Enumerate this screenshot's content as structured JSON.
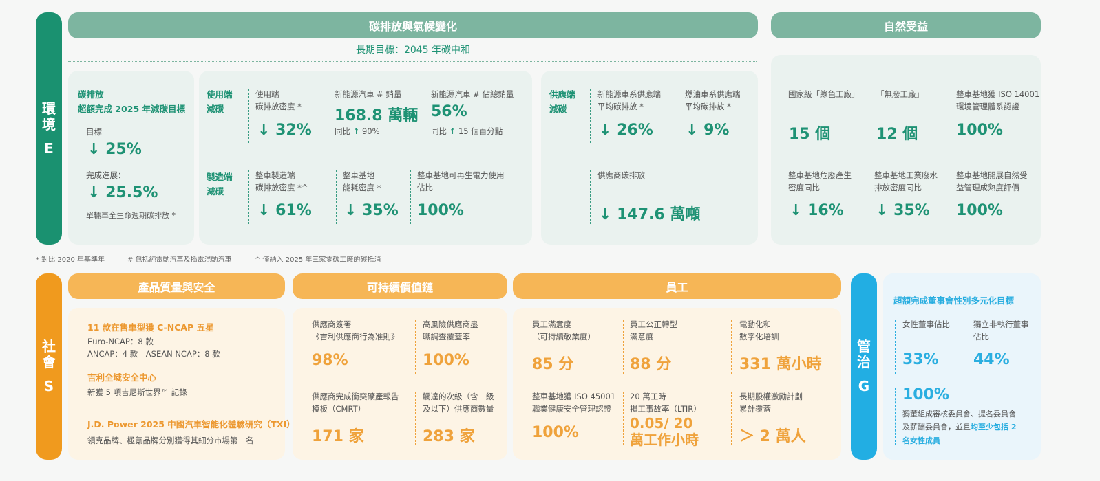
{
  "env": {
    "sidebar": {
      "chars": [
        "環",
        "境"
      ],
      "letter": "E"
    },
    "header_carbon": "碳排放與氣候變化",
    "header_nature": "自然受益",
    "long_term_goal": "長期目標：2045 年碳中和",
    "carbon_box": {
      "title1": "碳排放",
      "title2": "超額完成 2025 年減碳目標",
      "target_label": "目標",
      "target_value": "↓ 25%",
      "progress_label": "完成進展：",
      "progress_value": "↓ 25.5%",
      "progress_note": "單輛車全生命週期碳排放 *"
    },
    "use_side": {
      "title": [
        "使用端",
        "減碳"
      ],
      "m1_label": [
        "使用端",
        "碳排放密度 *"
      ],
      "m1_value": "↓ 32%",
      "m2_label": "新能源汽車 # 銷量",
      "m2_value": "168.8 萬輛",
      "m2_sub_prefix": "同比",
      "m2_sub_arrow": "↑",
      "m2_sub_value": "90%",
      "m3_label": "新能源汽車 # 佔總銷量",
      "m3_value": "56%",
      "m3_sub_prefix": "同比",
      "m3_sub_arrow": "↑",
      "m3_sub_value": "15 個百分點"
    },
    "mfg_side": {
      "title": [
        "製造端",
        "減碳"
      ],
      "m1_label": [
        "整車製造端",
        "碳排放密度 *^"
      ],
      "m1_value": "↓ 61%",
      "m2_label": [
        "整車基地",
        "能耗密度 *"
      ],
      "m2_value": "↓ 35%",
      "m3_label": [
        "整車基地可再生電力使用",
        "佔比"
      ],
      "m3_value": "100%"
    },
    "supply_side": {
      "title": [
        "供應端",
        "減碳"
      ],
      "m1_label": [
        "新能源車系供應端",
        "平均碳排放 *"
      ],
      "m1_value": "↓ 26%",
      "m2_label": [
        "燃油車系供應端",
        "平均碳排放 *"
      ],
      "m2_value": "↓ 9%",
      "m3_label": "供應商碳排放",
      "m3_value": "↓ 147.6 萬噸"
    },
    "nature": {
      "m1_label": "國家級「綠色工廠」",
      "m1_value": "15 個",
      "m2_label": "「無廢工廠」",
      "m2_value": "12 個",
      "m3_label": [
        "整車基地獲 ISO 14001",
        "環境管理體系認證"
      ],
      "m3_value": "100%",
      "m4_label": [
        "整車基地危廢產生",
        "密度同比"
      ],
      "m4_value": "↓ 16%",
      "m5_label": [
        "整車基地工業廢水",
        "排放密度同比"
      ],
      "m5_value": "↓ 35%",
      "m6_label": [
        "整車基地開展自然受",
        "益管理成熟度評價"
      ],
      "m6_value": "100%"
    },
    "footnotes": [
      "* 對比 2020 年基準年",
      "# 包括純電動汽車及插電混動汽車",
      "^ 僅納入 2025 年三家零碳工廠的碳抵消"
    ]
  },
  "social": {
    "sidebar": {
      "chars": [
        "社",
        "會"
      ],
      "letter": "S"
    },
    "header_quality": "產品質量與安全",
    "header_supply": "可持續價值鏈",
    "header_staff": "員工",
    "quality": {
      "t1": "11 款在售車型獲 C-NCAP 五星",
      "t1_l1": "Euro-NCAP：8 款",
      "t1_l2": "ANCAP：4 款　ASEAN NCAP：8 款",
      "t2": "吉利全域安全中心",
      "t2_l1": "新獲 5 項吉尼斯世界™ 記錄",
      "t3": "J.D. Power 2025 中國汽車智能化體驗研究（TXI）",
      "t3_l1": "領克品牌、極氪品牌分別獲得其細分市場第一名"
    },
    "supply": {
      "m1_label": [
        "供應商簽署",
        "《吉利供應商行為准則》"
      ],
      "m1_value": "98%",
      "m2_label": [
        "高風險供應商盡",
        "職調查覆蓋率"
      ],
      "m2_value": "100%",
      "m3_label": [
        "供應商完成衝突礦產報告",
        "模板（CMRT）"
      ],
      "m3_value": "171 家",
      "m4_label": [
        "觸達的次級（含二級",
        "及以下）供應商數量"
      ],
      "m4_value": "283 家"
    },
    "staff": {
      "m1_label": [
        "員工滿意度",
        "（可持續敬業度）"
      ],
      "m1_value": "85 分",
      "m2_label": [
        "員工公正轉型",
        "滿意度"
      ],
      "m2_value": "88 分",
      "m3_label": [
        "電動化和",
        "數字化培訓"
      ],
      "m3_value": "331 萬小時",
      "m4_label": [
        "整車基地獲 ISO 45001",
        "職業健康安全管理認證"
      ],
      "m4_value": "100%",
      "m5_label": [
        "20 萬工時",
        "損工事故率（LTIR）"
      ],
      "m5_value": [
        "0.05/ 20",
        "萬工作小時"
      ],
      "m6_label": [
        "長期股權激勵計劃",
        "累計覆蓋"
      ],
      "m6_value": "＞ 2 萬人"
    }
  },
  "gov": {
    "sidebar": {
      "chars": [
        "管",
        "治"
      ],
      "letter": "G"
    },
    "title": "超額完成董事會性別多元化目標",
    "m1_label": "女性董事佔比",
    "m1_value": "33%",
    "m2_label": [
      "獨立非執行董事",
      "佔比"
    ],
    "m2_value": "44%",
    "m3_value": "100%",
    "m3_text1": "獨董組成審核委員會、提名委員會",
    "m3_text2_a": "及薪酬委員會，並且",
    "m3_text2_b": "均至少包括 2",
    "m3_text3": "名女性成員"
  },
  "colors": {
    "env": "#1a9170",
    "env_header": "#7db5a0",
    "social": "#f09a1e",
    "social_header": "#f6b656",
    "gov": "#22aee3"
  }
}
